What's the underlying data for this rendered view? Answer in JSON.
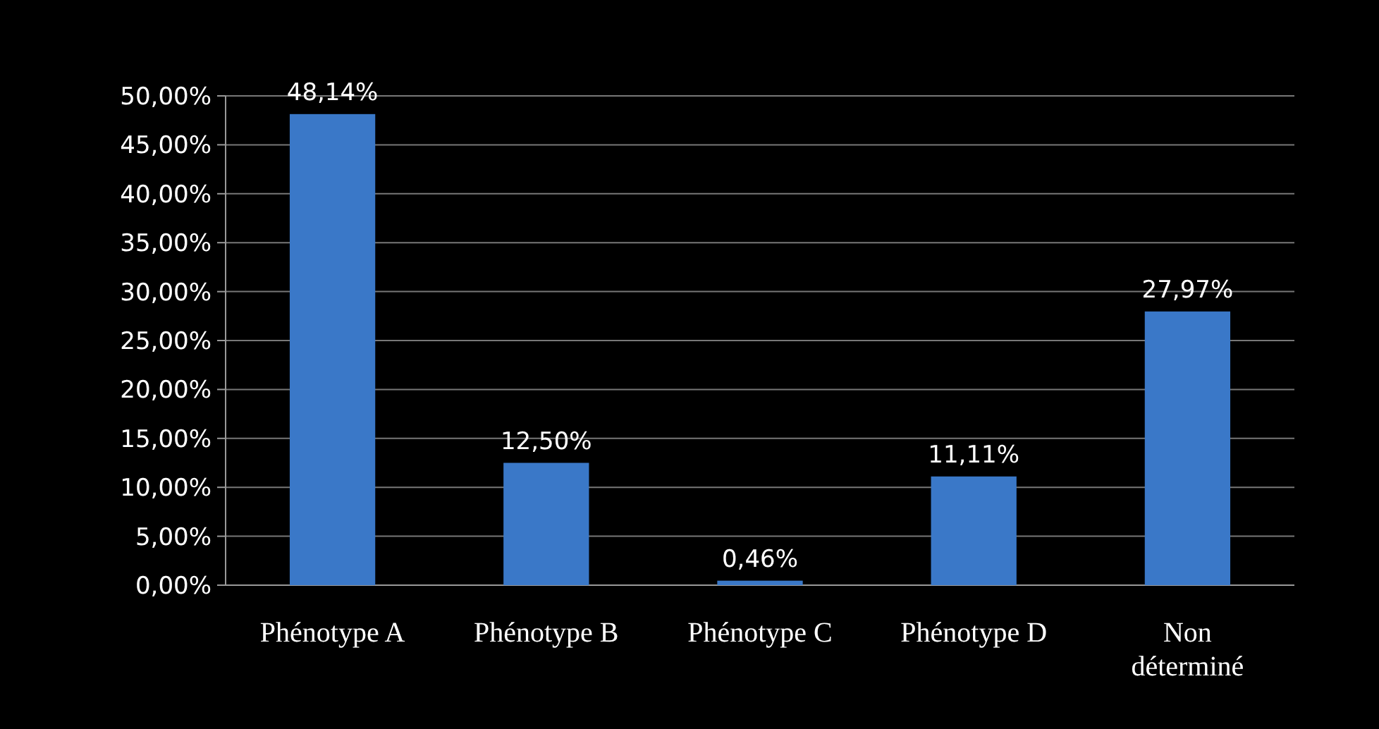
{
  "chart_data": {
    "type": "bar",
    "categories": [
      "Phénotype A",
      "Phénotype B",
      "Phénotype C",
      "Phénotype D",
      "Non déterminé"
    ],
    "values": [
      48.14,
      12.5,
      0.46,
      11.11,
      27.97
    ],
    "value_labels": [
      "48,14%",
      "12,50%",
      "0,46%",
      "11,11%",
      "27,97%"
    ],
    "color": "#3a78c8",
    "ylim": [
      0,
      50
    ],
    "yticks": [
      {
        "value": 0,
        "label": "0,00%"
      },
      {
        "value": 5,
        "label": "5,00%"
      },
      {
        "value": 10,
        "label": "10,00%"
      },
      {
        "value": 15,
        "label": "15,00%"
      },
      {
        "value": 20,
        "label": "20,00%"
      },
      {
        "value": 25,
        "label": "25,00%"
      },
      {
        "value": 30,
        "label": "30,00%"
      },
      {
        "value": 35,
        "label": "35,00%"
      },
      {
        "value": 40,
        "label": "40,00%"
      },
      {
        "value": 45,
        "label": "45,00%"
      },
      {
        "value": 50,
        "label": "50,00%"
      }
    ],
    "grid": "y"
  }
}
